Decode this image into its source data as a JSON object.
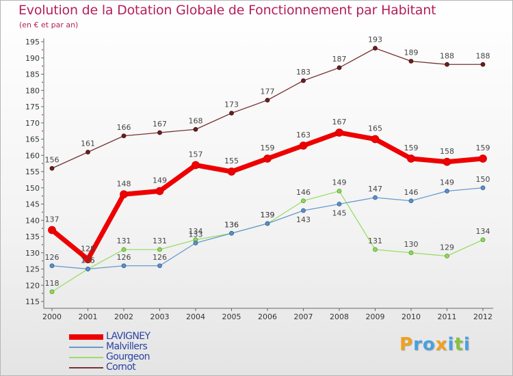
{
  "chart_data": {
    "type": "line",
    "title": "Evolution de la Dotation Globale de Fonctionnement par Habitant",
    "subtitle": "(en € et par an)",
    "xlabel": "",
    "ylabel": "",
    "categories": [
      "2000",
      "2001",
      "2002",
      "2003",
      "2004",
      "2005",
      "2006",
      "2007",
      "2008",
      "2009",
      "2010",
      "2011",
      "2012"
    ],
    "ylim": [
      115,
      195
    ],
    "yticks": [
      115,
      120,
      125,
      130,
      135,
      140,
      145,
      150,
      155,
      160,
      165,
      170,
      175,
      180,
      185,
      190,
      195
    ],
    "grid": false,
    "legend_position": "bottom-left",
    "series": [
      {
        "name": "LAVIGNEY",
        "color": "#ee0000",
        "values": [
          137,
          128,
          148,
          149,
          157,
          155,
          159,
          163,
          167,
          165,
          159,
          158,
          159
        ]
      },
      {
        "name": "Malvillers",
        "color": "#6699cc",
        "values": [
          126,
          125,
          126,
          126,
          133,
          136,
          139,
          143,
          145,
          147,
          146,
          149,
          150
        ]
      },
      {
        "name": "Gourgeon",
        "color": "#99dd66",
        "values": [
          118,
          125,
          131,
          131,
          134,
          136,
          139,
          146,
          149,
          131,
          130,
          129,
          134
        ]
      },
      {
        "name": "Cornot",
        "color": "#773333",
        "values": [
          156,
          161,
          166,
          167,
          168,
          173,
          177,
          183,
          187,
          193,
          189,
          188,
          188
        ]
      }
    ]
  },
  "logo": {
    "letters": [
      {
        "char": "P",
        "color": "#f0a020"
      },
      {
        "char": "r",
        "color": "#4aa0e0"
      },
      {
        "char": "o",
        "color": "#4aa0e0"
      },
      {
        "char": "x",
        "color": "#f0a020"
      },
      {
        "char": "i",
        "color": "#4aa0e0"
      },
      {
        "char": "t",
        "color": "#88c040"
      },
      {
        "char": "i",
        "color": "#4aa0e0"
      }
    ]
  }
}
